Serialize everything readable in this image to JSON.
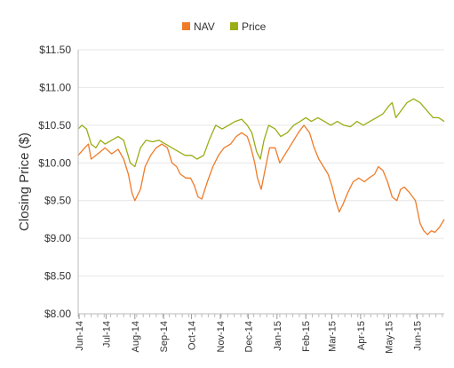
{
  "chart_data": {
    "type": "line",
    "title": "",
    "xlabel": "",
    "ylabel": "Closing Price ($)",
    "ylim": [
      8.0,
      11.5
    ],
    "y_ticks": [
      "$8.00",
      "$8.50",
      "$9.00",
      "$9.50",
      "$10.00",
      "$10.50",
      "$11.00",
      "$11.50"
    ],
    "y_tick_values": [
      8.0,
      8.5,
      9.0,
      9.5,
      10.0,
      10.5,
      11.0,
      11.5
    ],
    "x_range": [
      "2014-06-01",
      "2015-06-30"
    ],
    "x_ticks": [
      {
        "label": "Jun-14",
        "date": "2014-06-02"
      },
      {
        "label": "Jul-14",
        "date": "2014-07-01"
      },
      {
        "label": "Aug-14",
        "date": "2014-08-01"
      },
      {
        "label": "Sep-14",
        "date": "2014-09-01"
      },
      {
        "label": "Oct-14",
        "date": "2014-10-01"
      },
      {
        "label": "Nov-14",
        "date": "2014-11-01"
      },
      {
        "label": "Dec-14",
        "date": "2014-12-01"
      },
      {
        "label": "Jan-15",
        "date": "2015-01-01"
      },
      {
        "label": "Feb-15",
        "date": "2015-02-01"
      },
      {
        "label": "Mar-15",
        "date": "2015-03-01"
      },
      {
        "label": "Apr-15",
        "date": "2015-04-01"
      },
      {
        "label": "May-15",
        "date": "2015-05-01"
      },
      {
        "label": "Jun-15",
        "date": "2015-06-01"
      }
    ],
    "grid": "horizontal",
    "legend_position": "top-center",
    "series": [
      {
        "name": "NAV",
        "color": "#f07b28",
        "points": [
          [
            "2014-06-01",
            10.1
          ],
          [
            "2014-06-08",
            10.2
          ],
          [
            "2014-06-12",
            10.25
          ],
          [
            "2014-06-15",
            10.05
          ],
          [
            "2014-06-20",
            10.1
          ],
          [
            "2014-06-25",
            10.15
          ],
          [
            "2014-06-30",
            10.2
          ],
          [
            "2014-07-07",
            10.12
          ],
          [
            "2014-07-14",
            10.18
          ],
          [
            "2014-07-20",
            10.05
          ],
          [
            "2014-07-25",
            9.85
          ],
          [
            "2014-07-29",
            9.6
          ],
          [
            "2014-08-01",
            9.5
          ],
          [
            "2014-08-07",
            9.65
          ],
          [
            "2014-08-12",
            9.95
          ],
          [
            "2014-08-18",
            10.1
          ],
          [
            "2014-08-24",
            10.2
          ],
          [
            "2014-08-30",
            10.25
          ],
          [
            "2014-09-05",
            10.2
          ],
          [
            "2014-09-10",
            10.0
          ],
          [
            "2014-09-15",
            9.95
          ],
          [
            "2014-09-19",
            9.85
          ],
          [
            "2014-09-25",
            9.8
          ],
          [
            "2014-09-30",
            9.8
          ],
          [
            "2014-10-04",
            9.7
          ],
          [
            "2014-10-08",
            9.55
          ],
          [
            "2014-10-12",
            9.52
          ],
          [
            "2014-10-18",
            9.75
          ],
          [
            "2014-10-24",
            9.95
          ],
          [
            "2014-10-30",
            10.1
          ],
          [
            "2014-11-05",
            10.2
          ],
          [
            "2014-11-12",
            10.25
          ],
          [
            "2014-11-18",
            10.35
          ],
          [
            "2014-11-24",
            10.4
          ],
          [
            "2014-11-30",
            10.35
          ],
          [
            "2014-12-04",
            10.2
          ],
          [
            "2014-12-08",
            10.0
          ],
          [
            "2014-12-11",
            9.8
          ],
          [
            "2014-12-15",
            9.65
          ],
          [
            "2014-12-19",
            9.9
          ],
          [
            "2014-12-24",
            10.2
          ],
          [
            "2014-12-30",
            10.2
          ],
          [
            "2015-01-04",
            10.0
          ],
          [
            "2015-01-09",
            10.1
          ],
          [
            "2015-01-14",
            10.2
          ],
          [
            "2015-01-19",
            10.3
          ],
          [
            "2015-01-24",
            10.4
          ],
          [
            "2015-01-30",
            10.5
          ],
          [
            "2015-02-05",
            10.4
          ],
          [
            "2015-02-10",
            10.2
          ],
          [
            "2015-02-15",
            10.05
          ],
          [
            "2015-02-20",
            9.95
          ],
          [
            "2015-02-25",
            9.85
          ],
          [
            "2015-03-01",
            9.7
          ],
          [
            "2015-03-05",
            9.5
          ],
          [
            "2015-03-09",
            9.35
          ],
          [
            "2015-03-13",
            9.45
          ],
          [
            "2015-03-18",
            9.6
          ],
          [
            "2015-03-24",
            9.75
          ],
          [
            "2015-03-30",
            9.8
          ],
          [
            "2015-04-05",
            9.75
          ],
          [
            "2015-04-10",
            9.8
          ],
          [
            "2015-04-16",
            9.85
          ],
          [
            "2015-04-20",
            9.95
          ],
          [
            "2015-04-25",
            9.9
          ],
          [
            "2015-04-30",
            9.75
          ],
          [
            "2015-05-05",
            9.55
          ],
          [
            "2015-05-10",
            9.5
          ],
          [
            "2015-05-14",
            9.65
          ],
          [
            "2015-05-18",
            9.68
          ],
          [
            "2015-05-24",
            9.6
          ],
          [
            "2015-05-30",
            9.5
          ],
          [
            "2015-06-04",
            9.2
          ],
          [
            "2015-06-08",
            9.1
          ],
          [
            "2015-06-12",
            9.05
          ],
          [
            "2015-06-16",
            9.1
          ],
          [
            "2015-06-20",
            9.08
          ],
          [
            "2015-06-25",
            9.15
          ],
          [
            "2015-06-30",
            9.25
          ]
        ]
      },
      {
        "name": "Price",
        "color": "#9aad14",
        "points": [
          [
            "2014-06-01",
            10.45
          ],
          [
            "2014-06-05",
            10.5
          ],
          [
            "2014-06-10",
            10.45
          ],
          [
            "2014-06-15",
            10.25
          ],
          [
            "2014-06-20",
            10.2
          ],
          [
            "2014-06-25",
            10.3
          ],
          [
            "2014-06-30",
            10.25
          ],
          [
            "2014-07-07",
            10.3
          ],
          [
            "2014-07-14",
            10.35
          ],
          [
            "2014-07-20",
            10.3
          ],
          [
            "2014-07-27",
            10.0
          ],
          [
            "2014-08-01",
            9.95
          ],
          [
            "2014-08-07",
            10.2
          ],
          [
            "2014-08-13",
            10.3
          ],
          [
            "2014-08-20",
            10.28
          ],
          [
            "2014-08-27",
            10.3
          ],
          [
            "2014-09-03",
            10.25
          ],
          [
            "2014-09-10",
            10.2
          ],
          [
            "2014-09-17",
            10.15
          ],
          [
            "2014-09-24",
            10.1
          ],
          [
            "2014-10-01",
            10.1
          ],
          [
            "2014-10-07",
            10.05
          ],
          [
            "2014-10-14",
            10.1
          ],
          [
            "2014-10-20",
            10.3
          ],
          [
            "2014-10-27",
            10.5
          ],
          [
            "2014-11-03",
            10.45
          ],
          [
            "2014-11-10",
            10.5
          ],
          [
            "2014-11-17",
            10.55
          ],
          [
            "2014-11-24",
            10.58
          ],
          [
            "2014-11-30",
            10.5
          ],
          [
            "2014-12-05",
            10.4
          ],
          [
            "2014-12-10",
            10.15
          ],
          [
            "2014-12-14",
            10.05
          ],
          [
            "2014-12-18",
            10.3
          ],
          [
            "2014-12-23",
            10.5
          ],
          [
            "2014-12-30",
            10.45
          ],
          [
            "2015-01-05",
            10.35
          ],
          [
            "2015-01-12",
            10.4
          ],
          [
            "2015-01-19",
            10.5
          ],
          [
            "2015-01-26",
            10.55
          ],
          [
            "2015-02-01",
            10.6
          ],
          [
            "2015-02-07",
            10.55
          ],
          [
            "2015-02-14",
            10.6
          ],
          [
            "2015-02-21",
            10.55
          ],
          [
            "2015-02-28",
            10.5
          ],
          [
            "2015-03-07",
            10.55
          ],
          [
            "2015-03-14",
            10.5
          ],
          [
            "2015-03-21",
            10.48
          ],
          [
            "2015-03-28",
            10.55
          ],
          [
            "2015-04-04",
            10.5
          ],
          [
            "2015-04-11",
            10.55
          ],
          [
            "2015-04-18",
            10.6
          ],
          [
            "2015-04-25",
            10.65
          ],
          [
            "2015-05-01",
            10.75
          ],
          [
            "2015-05-05",
            10.8
          ],
          [
            "2015-05-09",
            10.6
          ],
          [
            "2015-05-15",
            10.7
          ],
          [
            "2015-05-21",
            10.8
          ],
          [
            "2015-05-28",
            10.85
          ],
          [
            "2015-06-04",
            10.8
          ],
          [
            "2015-06-11",
            10.7
          ],
          [
            "2015-06-18",
            10.6
          ],
          [
            "2015-06-24",
            10.6
          ],
          [
            "2015-06-30",
            10.55
          ]
        ]
      }
    ]
  }
}
